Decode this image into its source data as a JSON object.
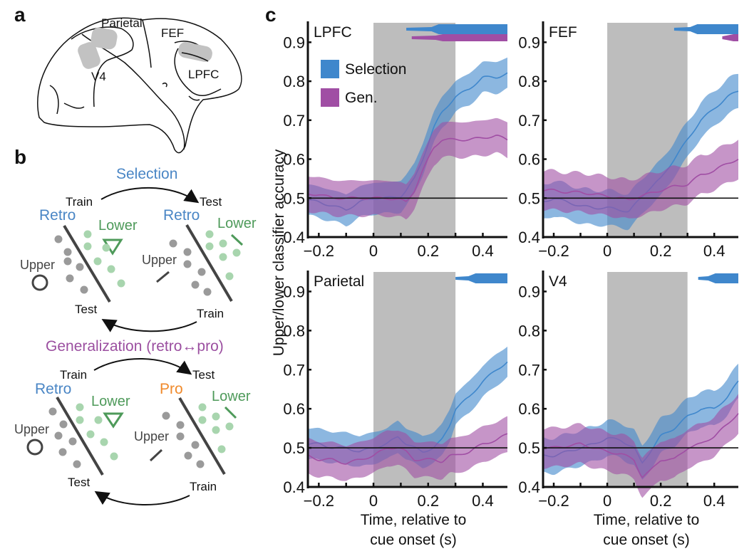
{
  "panels": {
    "a": {
      "letter": "a",
      "regions": [
        "Parietal",
        "FEF",
        "V4",
        "LPFC"
      ]
    },
    "b": {
      "letter": "b",
      "selection": {
        "title": "Selection",
        "train_top": "Train",
        "test_top": "Test",
        "left_condition": "Retro",
        "right_condition": "Retro",
        "lower": "Lower",
        "upper": "Upper",
        "test_bottom": "Test",
        "train_bottom": "Train"
      },
      "generalization": {
        "title": "Generalization (retro↔pro)",
        "train_top": "Train",
        "test_top": "Test",
        "left_condition": "Retro",
        "right_condition": "Pro",
        "lower": "Lower",
        "upper": "Upper",
        "test_bottom": "Test",
        "train_bottom": "Train"
      }
    },
    "c": {
      "letter": "c"
    }
  },
  "colors": {
    "selection": "#3f87cc",
    "generalization": "#a04ea4",
    "cue_window": "#bdbdbd",
    "retro": "#4a86c5",
    "pro": "#f08a2c",
    "lower": "#4e9a5a",
    "generalization_title": "#9b4fa0"
  },
  "chart_data": [
    {
      "type": "line",
      "title": "LPFC",
      "xlabel": "",
      "ylabel": "Upper/lower classifier accuracy",
      "xlim": [
        -0.24,
        0.49
      ],
      "ylim": [
        0.4,
        0.95
      ],
      "xticks": [
        -0.2,
        0,
        0.2,
        0.4
      ],
      "xtick_labels": [
        "−0.2",
        "0",
        "0.2",
        "0.4"
      ],
      "yticks": [
        0.4,
        0.5,
        0.6,
        0.7,
        0.8,
        0.9
      ],
      "ytick_labels": [
        "0.4",
        "0.5",
        "0.6",
        "0.7",
        "0.8",
        "0.9"
      ],
      "chance_line": 0.5,
      "shaded_window": [
        0,
        0.3
      ],
      "legend": {
        "entries": [
          "Selection",
          "Gen."
        ],
        "placement": "top-left"
      },
      "x": [
        -0.24,
        -0.2,
        -0.15,
        -0.1,
        -0.05,
        0,
        0.05,
        0.1,
        0.12,
        0.15,
        0.18,
        0.2,
        0.22,
        0.25,
        0.3,
        0.35,
        0.4,
        0.45,
        0.49
      ],
      "series": [
        {
          "name": "Selection",
          "values": [
            0.495,
            0.49,
            0.48,
            0.47,
            0.49,
            0.5,
            0.5,
            0.505,
            0.52,
            0.55,
            0.6,
            0.64,
            0.68,
            0.72,
            0.76,
            0.78,
            0.81,
            0.81,
            0.82
          ],
          "sem": 0.04
        },
        {
          "name": "Gen.",
          "values": [
            0.51,
            0.51,
            0.5,
            0.5,
            0.5,
            0.5,
            0.5,
            0.495,
            0.49,
            0.52,
            0.57,
            0.6,
            0.63,
            0.65,
            0.65,
            0.65,
            0.655,
            0.66,
            0.65
          ],
          "sem": 0.045
        }
      ],
      "significance_bars": [
        {
          "series": "Selection",
          "start": 0.12,
          "end": 0.49
        },
        {
          "series": "Gen.",
          "start": 0.14,
          "end": 0.49
        }
      ]
    },
    {
      "type": "line",
      "title": "FEF",
      "xlim": [
        -0.24,
        0.49
      ],
      "ylim": [
        0.4,
        0.95
      ],
      "xticks": [
        -0.2,
        0,
        0.2,
        0.4
      ],
      "xtick_labels": [
        "−0.2",
        "0",
        "0.2",
        "0.4"
      ],
      "yticks": [
        0.4,
        0.5,
        0.6,
        0.7,
        0.8,
        0.9
      ],
      "ytick_labels": [
        "0.4",
        "0.5",
        "0.6",
        "0.7",
        "0.8",
        "0.9"
      ],
      "chance_line": 0.5,
      "shaded_window": [
        0,
        0.3
      ],
      "x": [
        -0.24,
        -0.2,
        -0.15,
        -0.1,
        -0.05,
        0,
        0.05,
        0.08,
        0.1,
        0.15,
        0.2,
        0.25,
        0.3,
        0.35,
        0.4,
        0.45,
        0.49
      ],
      "series": [
        {
          "name": "Selection",
          "values": [
            0.49,
            0.5,
            0.49,
            0.48,
            0.475,
            0.475,
            0.47,
            0.465,
            0.48,
            0.52,
            0.55,
            0.6,
            0.65,
            0.7,
            0.73,
            0.76,
            0.775
          ],
          "sem": 0.045
        },
        {
          "name": "Gen.",
          "values": [
            0.52,
            0.52,
            0.515,
            0.515,
            0.51,
            0.505,
            0.5,
            0.495,
            0.5,
            0.51,
            0.52,
            0.53,
            0.535,
            0.56,
            0.57,
            0.59,
            0.6
          ],
          "sem": 0.05
        }
      ],
      "significance_bars": [
        {
          "series": "Selection",
          "start": 0.25,
          "end": 0.49
        },
        {
          "series": "Gen.",
          "start": 0.43,
          "end": 0.49
        }
      ]
    },
    {
      "type": "line",
      "title": "Parietal",
      "xlabel": "Time, relative to cue onset (s)",
      "xlim": [
        -0.24,
        0.49
      ],
      "ylim": [
        0.4,
        0.95
      ],
      "xticks": [
        -0.2,
        0,
        0.2,
        0.4
      ],
      "xtick_labels": [
        "−0.2",
        "0",
        "0.2",
        "0.4"
      ],
      "yticks": [
        0.4,
        0.5,
        0.6,
        0.7,
        0.8,
        0.9
      ],
      "ytick_labels": [
        "0.4",
        "0.5",
        "0.6",
        "0.7",
        "0.8",
        "0.9"
      ],
      "chance_line": 0.5,
      "shaded_window": [
        0,
        0.3
      ],
      "x": [
        -0.24,
        -0.2,
        -0.15,
        -0.1,
        -0.05,
        0,
        0.05,
        0.09,
        0.12,
        0.15,
        0.18,
        0.22,
        0.25,
        0.28,
        0.3,
        0.35,
        0.4,
        0.45,
        0.49
      ],
      "series": [
        {
          "name": "Selection",
          "values": [
            0.51,
            0.51,
            0.5,
            0.5,
            0.49,
            0.5,
            0.51,
            0.53,
            0.51,
            0.5,
            0.49,
            0.5,
            0.52,
            0.56,
            0.6,
            0.63,
            0.67,
            0.7,
            0.72
          ],
          "sem": 0.04
        },
        {
          "name": "Gen.",
          "values": [
            0.48,
            0.47,
            0.47,
            0.46,
            0.47,
            0.48,
            0.5,
            0.5,
            0.49,
            0.47,
            0.47,
            0.47,
            0.465,
            0.48,
            0.48,
            0.49,
            0.51,
            0.52,
            0.535
          ],
          "sem": 0.045
        }
      ],
      "significance_bars": [
        {
          "series": "Selection",
          "start": 0.3,
          "end": 0.49
        }
      ]
    },
    {
      "type": "line",
      "title": "V4",
      "xlabel": "Time, relative to cue onset (s)",
      "xlim": [
        -0.24,
        0.49
      ],
      "ylim": [
        0.4,
        0.95
      ],
      "xticks": [
        -0.2,
        0,
        0.2,
        0.4
      ],
      "xtick_labels": [
        "−0.2",
        "0",
        "0.2",
        "0.4"
      ],
      "yticks": [
        0.4,
        0.5,
        0.6,
        0.7,
        0.8,
        0.9
      ],
      "ytick_labels": [
        "0.4",
        "0.5",
        "0.6",
        "0.7",
        "0.8",
        "0.9"
      ],
      "chance_line": 0.5,
      "shaded_window": [
        0,
        0.3
      ],
      "x": [
        -0.24,
        -0.2,
        -0.15,
        -0.1,
        -0.05,
        0,
        0.05,
        0.1,
        0.13,
        0.16,
        0.2,
        0.25,
        0.3,
        0.35,
        0.4,
        0.45,
        0.49
      ],
      "series": [
        {
          "name": "Selection",
          "values": [
            0.48,
            0.48,
            0.49,
            0.5,
            0.51,
            0.525,
            0.52,
            0.5,
            0.46,
            0.49,
            0.53,
            0.55,
            0.58,
            0.6,
            0.6,
            0.63,
            0.67
          ],
          "sem": 0.045
        },
        {
          "name": "Gen.",
          "values": [
            0.5,
            0.5,
            0.505,
            0.51,
            0.5,
            0.49,
            0.485,
            0.47,
            0.425,
            0.44,
            0.47,
            0.47,
            0.5,
            0.51,
            0.53,
            0.56,
            0.59
          ],
          "sem": 0.05
        }
      ],
      "significance_bars": [
        {
          "series": "Selection",
          "start": 0.34,
          "end": 0.49
        }
      ]
    }
  ]
}
